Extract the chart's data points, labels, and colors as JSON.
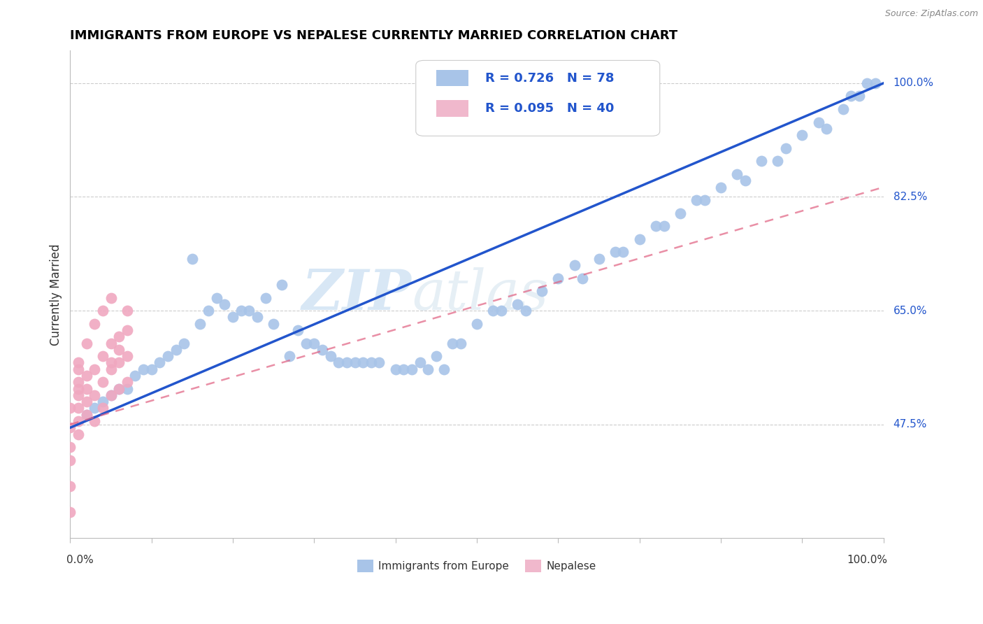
{
  "title": "IMMIGRANTS FROM EUROPE VS NEPALESE CURRENTLY MARRIED CORRELATION CHART",
  "source": "Source: ZipAtlas.com",
  "ylabel": "Currently Married",
  "legend_blue_label": "Immigrants from Europe",
  "legend_pink_label": "Nepalese",
  "ytick_labels": [
    "47.5%",
    "65.0%",
    "82.5%",
    "100.0%"
  ],
  "ytick_values": [
    0.475,
    0.65,
    0.825,
    1.0
  ],
  "xlim": [
    0.0,
    1.0
  ],
  "ylim": [
    0.3,
    1.05
  ],
  "blue_R": 0.726,
  "blue_N": 78,
  "pink_R": 0.095,
  "pink_N": 40,
  "blue_color": "#a8c4e8",
  "pink_color": "#f0a8c0",
  "blue_line_color": "#2255cc",
  "pink_line_color": "#e06080",
  "legend_blue_box": "#a8c4e8",
  "legend_pink_box": "#f0b8cc",
  "watermark_zip": "ZIP",
  "watermark_atlas": "atlas",
  "blue_points_x": [
    0.27,
    0.32,
    0.14,
    0.15,
    0.2,
    0.22,
    0.24,
    0.26,
    0.28,
    0.3,
    0.08,
    0.09,
    0.1,
    0.11,
    0.12,
    0.13,
    0.06,
    0.07,
    0.05,
    0.04,
    0.03,
    0.02,
    0.18,
    0.16,
    0.35,
    0.37,
    0.4,
    0.42,
    0.34,
    0.36,
    0.44,
    0.46,
    0.38,
    0.33,
    0.29,
    0.31,
    0.17,
    0.19,
    0.21,
    0.23,
    0.25,
    0.5,
    0.55,
    0.6,
    0.65,
    0.7,
    0.75,
    0.8,
    0.85,
    0.9,
    0.95,
    0.98,
    0.99,
    0.62,
    0.58,
    0.52,
    0.48,
    0.45,
    0.43,
    0.41,
    0.56,
    0.68,
    0.72,
    0.77,
    0.82,
    0.88,
    0.92,
    0.96,
    0.97,
    0.93,
    0.87,
    0.83,
    0.78,
    0.73,
    0.67,
    0.63,
    0.53,
    0.47
  ],
  "blue_points_y": [
    0.58,
    0.58,
    0.6,
    0.73,
    0.64,
    0.65,
    0.67,
    0.69,
    0.62,
    0.6,
    0.55,
    0.56,
    0.56,
    0.57,
    0.58,
    0.59,
    0.53,
    0.53,
    0.52,
    0.51,
    0.5,
    0.49,
    0.67,
    0.63,
    0.57,
    0.57,
    0.56,
    0.56,
    0.57,
    0.57,
    0.56,
    0.56,
    0.57,
    0.57,
    0.6,
    0.59,
    0.65,
    0.66,
    0.65,
    0.64,
    0.63,
    0.63,
    0.66,
    0.7,
    0.73,
    0.76,
    0.8,
    0.84,
    0.88,
    0.92,
    0.96,
    1.0,
    1.0,
    0.72,
    0.68,
    0.65,
    0.6,
    0.58,
    0.57,
    0.56,
    0.65,
    0.74,
    0.78,
    0.82,
    0.86,
    0.9,
    0.94,
    0.98,
    0.98,
    0.93,
    0.88,
    0.85,
    0.82,
    0.78,
    0.74,
    0.7,
    0.65,
    0.6
  ],
  "blue_line_x0": 0.0,
  "blue_line_y0": 0.47,
  "blue_line_x1": 1.0,
  "blue_line_y1": 1.0,
  "pink_line_x0": 0.0,
  "pink_line_y0": 0.475,
  "pink_line_x1": 1.0,
  "pink_line_y1": 0.84,
  "pink_points_x": [
    0.0,
    0.0,
    0.0,
    0.0,
    0.0,
    0.01,
    0.01,
    0.01,
    0.01,
    0.01,
    0.01,
    0.02,
    0.02,
    0.02,
    0.02,
    0.03,
    0.03,
    0.03,
    0.04,
    0.04,
    0.04,
    0.05,
    0.05,
    0.05,
    0.06,
    0.06,
    0.06,
    0.07,
    0.07,
    0.07,
    0.0,
    0.01,
    0.01,
    0.02,
    0.03,
    0.04,
    0.05,
    0.05,
    0.06,
    0.07
  ],
  "pink_points_y": [
    0.34,
    0.38,
    0.42,
    0.47,
    0.5,
    0.48,
    0.5,
    0.52,
    0.53,
    0.54,
    0.56,
    0.49,
    0.51,
    0.53,
    0.55,
    0.48,
    0.52,
    0.56,
    0.5,
    0.54,
    0.58,
    0.52,
    0.56,
    0.6,
    0.53,
    0.57,
    0.61,
    0.54,
    0.58,
    0.62,
    0.44,
    0.46,
    0.57,
    0.6,
    0.63,
    0.65,
    0.67,
    0.57,
    0.59,
    0.65
  ]
}
